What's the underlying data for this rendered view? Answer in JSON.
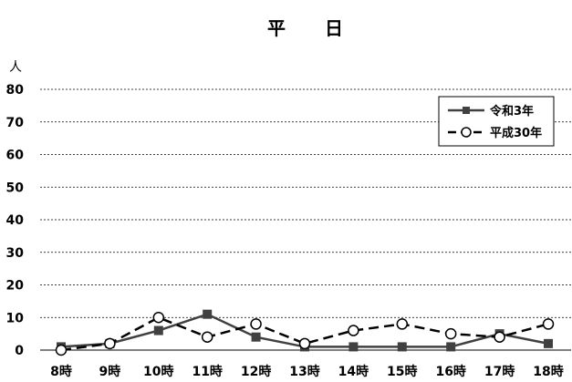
{
  "chart_data": {
    "type": "line",
    "title": "平　　日",
    "ylabel": "人",
    "ylim": [
      0,
      80
    ],
    "yticks": [
      "0",
      "10",
      "20",
      "30",
      "40",
      "50",
      "60",
      "70",
      "80"
    ],
    "categories": [
      "8時",
      "9時",
      "10時",
      "11時",
      "12時",
      "13時",
      "14時",
      "15時",
      "16時",
      "17時",
      "18時"
    ],
    "grid": true,
    "legend_position": "top-right",
    "series": [
      {
        "name": "令和3年",
        "values": [
          1,
          2,
          6,
          11,
          4,
          1,
          1,
          1,
          1,
          5,
          2
        ],
        "color": "#404040",
        "line": "solid",
        "marker": "filled-square"
      },
      {
        "name": "平成30年",
        "values": [
          0,
          2,
          10,
          4,
          8,
          2,
          6,
          8,
          5,
          4,
          8
        ],
        "color": "#000000",
        "line": "dashed",
        "marker": "open-circle"
      }
    ]
  }
}
